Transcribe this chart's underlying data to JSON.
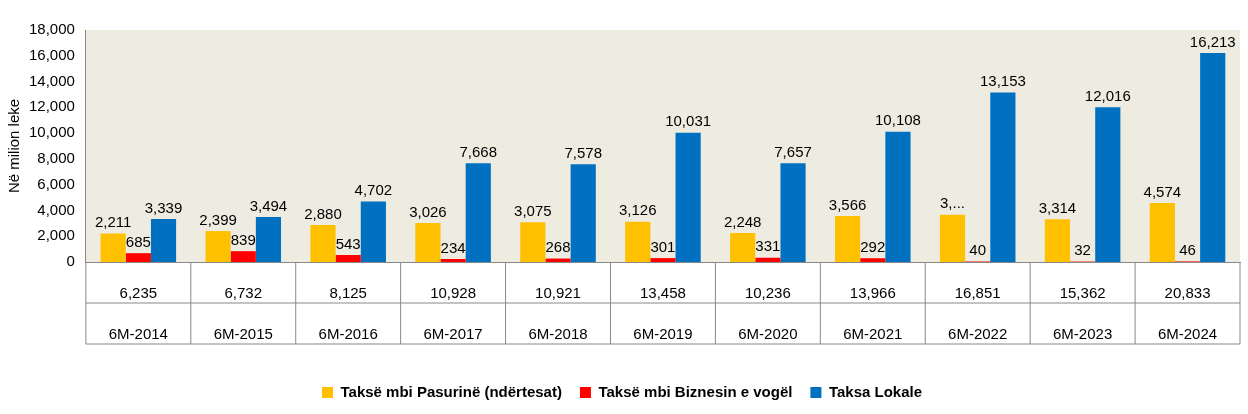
{
  "chart_data": {
    "type": "bar",
    "ylabel": "Në milion leke",
    "categories": [
      "6M-2014",
      "6M-2015",
      "6M-2016",
      "6M-2017",
      "6M-2018",
      "6M-2019",
      "6M-2020",
      "6M-2021",
      "6M-2022",
      "6M-2023",
      "6M-2024"
    ],
    "series": [
      {
        "name": "Taksë mbi Pasurinë (ndërtesat)",
        "color": "#ffc000",
        "values": [
          2211,
          2399,
          2880,
          3026,
          3075,
          3126,
          2248,
          3566,
          3658,
          3314,
          4574
        ],
        "value_labels": [
          "2,211",
          "2,399",
          "2,880",
          "3,026",
          "3,075",
          "3,126",
          "2,248",
          "3,566",
          "3,...",
          "3,314",
          "4,574"
        ]
      },
      {
        "name": "Taksë mbi Biznesin e vogël",
        "color": "#ff0000",
        "values": [
          685,
          839,
          543,
          234,
          268,
          301,
          331,
          292,
          40,
          32,
          46
        ],
        "value_labels": [
          "685",
          "839",
          "543",
          "234",
          "268",
          "301",
          "331",
          "292",
          "40",
          "32",
          "46"
        ]
      },
      {
        "name": "Taksa Lokale",
        "color": "#0070c0",
        "values": [
          3339,
          3494,
          4702,
          7668,
          7578,
          10031,
          7657,
          10108,
          13153,
          12016,
          16213
        ],
        "value_labels": [
          "3,339",
          "3,494",
          "4,702",
          "7,668",
          "7,578",
          "10,031",
          "7,657",
          "10,108",
          "13,153",
          "12,016",
          "16,213"
        ]
      }
    ],
    "totals": [
      "6,235",
      "6,732",
      "8,125",
      "10,928",
      "10,921",
      "13,458",
      "10,236",
      "13,966",
      "16,851",
      "15,362",
      "20,833"
    ],
    "ylim": [
      0,
      18000
    ],
    "yticks": [
      0,
      {
        "value": 2000,
        "label": "2,000"
      },
      {
        "value": 4000,
        "label": "4,000"
      },
      {
        "value": 6000,
        "label": "6,000"
      },
      {
        "value": 8000,
        "label": "8,000"
      },
      {
        "value": 10000,
        "label": "10,000"
      },
      {
        "value": 12000,
        "label": "12,000"
      },
      {
        "value": 14000,
        "label": "14,000"
      },
      {
        "value": 16000,
        "label": "16,000"
      },
      {
        "value": 18000,
        "label": "18,000"
      }
    ],
    "grid": false,
    "legend": "bottom"
  }
}
